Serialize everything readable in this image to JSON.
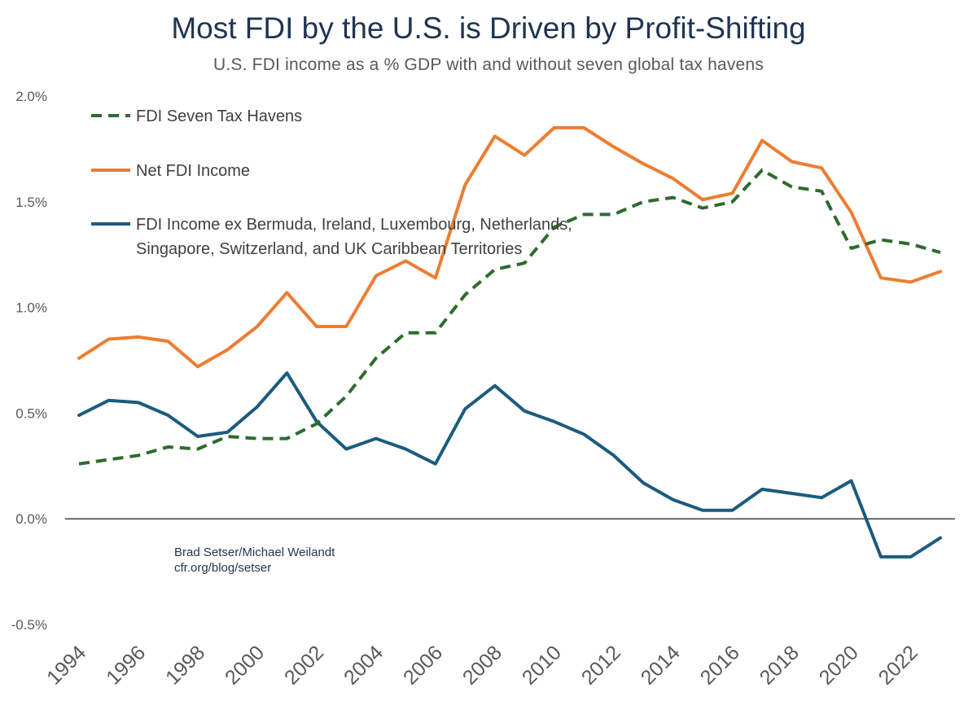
{
  "title": "Most FDI by the U.S. is Driven by Profit-Shifting",
  "subtitle": "U.S. FDI income as a % GDP with and without seven global tax havens",
  "credit": [
    "Brad Setser/Michael Weilandt",
    "cfr.org/blog/setser"
  ],
  "colors": {
    "havens": "#2e6b2e",
    "net": "#ed7d31",
    "ex": "#1b5b7e",
    "title": "#1f3451"
  },
  "chart_data": {
    "type": "line",
    "x": [
      1994,
      1995,
      1996,
      1997,
      1998,
      1999,
      2000,
      2001,
      2002,
      2003,
      2004,
      2005,
      2006,
      2007,
      2008,
      2009,
      2010,
      2011,
      2012,
      2013,
      2014,
      2015,
      2016,
      2017,
      2018,
      2019,
      2020,
      2021,
      2022,
      2023
    ],
    "xticks": [
      1994,
      1996,
      1998,
      2000,
      2002,
      2004,
      2006,
      2008,
      2010,
      2012,
      2014,
      2016,
      2018,
      2020,
      2022
    ],
    "yticks": [
      2.0,
      1.5,
      1.0,
      0.5,
      0.0,
      -0.5
    ],
    "ytick_labels": [
      "2.0%",
      "1.5%",
      "1.0%",
      "0.5%",
      "0.0%",
      "-0.5%"
    ],
    "ylim": [
      -0.5,
      2.0
    ],
    "legend_position": "top-left",
    "series": [
      {
        "name": "FDI Seven Tax Havens",
        "style": "dashed",
        "color": "#2e6b2e",
        "values": [
          0.26,
          0.28,
          0.3,
          0.34,
          0.33,
          0.39,
          0.38,
          0.38,
          0.45,
          0.58,
          0.76,
          0.88,
          0.88,
          1.06,
          1.18,
          1.21,
          1.38,
          1.44,
          1.44,
          1.5,
          1.52,
          1.47,
          1.5,
          1.65,
          1.57,
          1.55,
          1.28,
          1.32,
          1.3,
          1.26
        ]
      },
      {
        "name": "Net FDI Income",
        "style": "solid",
        "color": "#ed7d31",
        "values": [
          0.76,
          0.85,
          0.86,
          0.84,
          0.72,
          0.8,
          0.91,
          1.07,
          0.91,
          0.91,
          1.15,
          1.22,
          1.14,
          1.58,
          1.81,
          1.72,
          1.85,
          1.85,
          1.76,
          1.68,
          1.61,
          1.51,
          1.54,
          1.79,
          1.69,
          1.66,
          1.45,
          1.14,
          1.12,
          1.17
        ]
      },
      {
        "name": "FDI Income ex Bermuda, Ireland, Luxembourg, Netherlands, Singapore, Switzerland, and UK Caribbean Territories",
        "style": "solid",
        "color": "#1b5b7e",
        "values": [
          0.49,
          0.56,
          0.55,
          0.49,
          0.39,
          0.41,
          0.53,
          0.69,
          0.46,
          0.33,
          0.38,
          0.33,
          0.26,
          0.52,
          0.63,
          0.51,
          0.46,
          0.4,
          0.3,
          0.17,
          0.09,
          0.04,
          0.04,
          0.14,
          0.12,
          0.1,
          0.18,
          -0.18,
          -0.18,
          -0.09
        ]
      }
    ],
    "legend_lines": [
      [
        "FDI Seven Tax Havens"
      ],
      [
        "Net FDI Income"
      ],
      [
        "FDI Income ex Bermuda, Ireland, Luxembourg, Netherlands,",
        "Singapore, Switzerland, and UK Caribbean Territories"
      ]
    ]
  }
}
